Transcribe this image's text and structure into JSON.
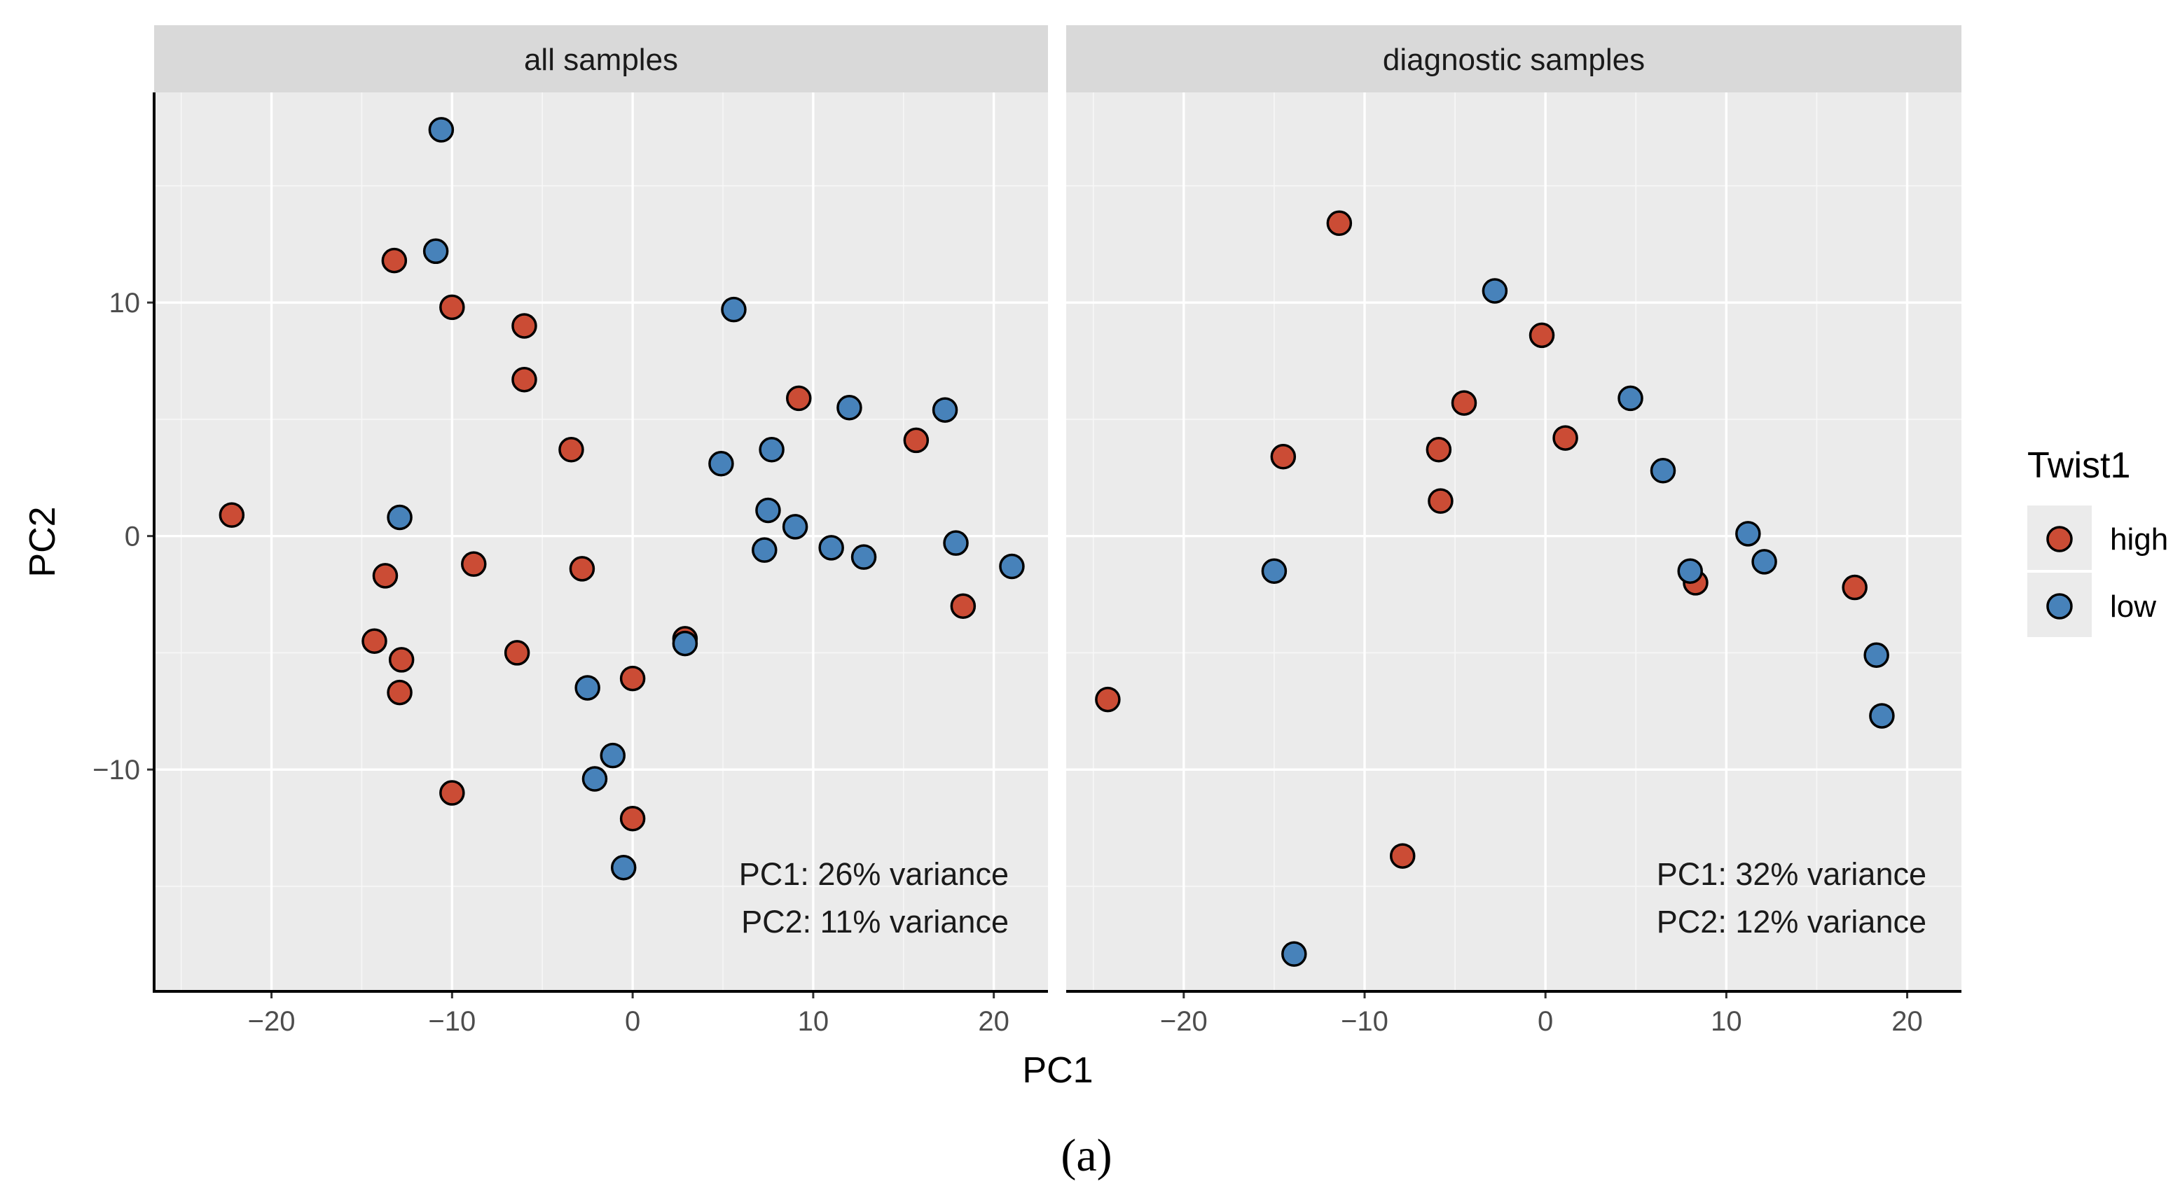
{
  "chart_data": [
    {
      "type": "scatter",
      "panel": "all samples",
      "xlabel": "PC1",
      "ylabel": "PC2",
      "xlim": [
        -26.5,
        23
      ],
      "ylim": [
        -19.5,
        19
      ],
      "xticks": [
        -20,
        -10,
        0,
        10,
        20
      ],
      "yticks": [
        -10,
        0,
        10
      ],
      "xtick_labels": [
        "−20",
        "−10",
        "0",
        "10",
        "20"
      ],
      "ytick_labels": [
        "−10",
        "0",
        "10"
      ],
      "annotations": [
        "PC1: 26% variance",
        "PC2: 11% variance"
      ],
      "series": [
        {
          "name": "high",
          "color": "#CB4C35",
          "points": [
            [
              -22.2,
              0.9
            ],
            [
              -13.2,
              11.8
            ],
            [
              -10.0,
              9.8
            ],
            [
              -6.0,
              9.0
            ],
            [
              -6.0,
              6.7
            ],
            [
              -3.4,
              3.7
            ],
            [
              9.2,
              5.9
            ],
            [
              15.7,
              4.1
            ],
            [
              -8.8,
              -1.2
            ],
            [
              -2.8,
              -1.4
            ],
            [
              -13.7,
              -1.7
            ],
            [
              -14.3,
              -4.5
            ],
            [
              -12.8,
              -5.3
            ],
            [
              -12.9,
              -6.7
            ],
            [
              -6.4,
              -5.0
            ],
            [
              2.9,
              -4.4
            ],
            [
              0.0,
              -6.1
            ],
            [
              18.3,
              -3.0
            ],
            [
              -10.0,
              -11.0
            ],
            [
              0.0,
              -12.1
            ]
          ]
        },
        {
          "name": "low",
          "color": "#4782BA",
          "points": [
            [
              -10.6,
              17.4
            ],
            [
              -10.9,
              12.2
            ],
            [
              5.6,
              9.7
            ],
            [
              12.0,
              5.5
            ],
            [
              17.3,
              5.4
            ],
            [
              4.9,
              3.1
            ],
            [
              7.7,
              3.7
            ],
            [
              -12.9,
              0.8
            ],
            [
              7.5,
              1.1
            ],
            [
              9.0,
              0.4
            ],
            [
              11.0,
              -0.5
            ],
            [
              7.3,
              -0.6
            ],
            [
              12.8,
              -0.9
            ],
            [
              17.9,
              -0.3
            ],
            [
              21.0,
              -1.3
            ],
            [
              2.9,
              -4.6
            ],
            [
              -2.5,
              -6.5
            ],
            [
              -1.1,
              -9.4
            ],
            [
              -2.1,
              -10.4
            ],
            [
              -0.5,
              -14.2
            ]
          ]
        }
      ]
    },
    {
      "type": "scatter",
      "panel": "diagnostic samples",
      "xlabel": "PC1",
      "ylabel": "PC2",
      "xlim": [
        -26.5,
        23
      ],
      "ylim": [
        -19.5,
        19
      ],
      "xticks": [
        -20,
        -10,
        0,
        10,
        20
      ],
      "yticks": [
        -10,
        0,
        10
      ],
      "xtick_labels": [
        "−20",
        "−10",
        "0",
        "10",
        "20"
      ],
      "ytick_labels": [
        "−10",
        "0",
        "10"
      ],
      "annotations": [
        "PC1: 32% variance",
        "PC2: 12% variance"
      ],
      "series": [
        {
          "name": "high",
          "color": "#CB4C35",
          "points": [
            [
              -11.4,
              13.4
            ],
            [
              -0.2,
              8.6
            ],
            [
              -4.5,
              5.7
            ],
            [
              -5.9,
              3.7
            ],
            [
              -14.5,
              3.4
            ],
            [
              1.1,
              4.2
            ],
            [
              -5.8,
              1.5
            ],
            [
              8.3,
              -2.0
            ],
            [
              17.1,
              -2.2
            ],
            [
              -24.2,
              -7.0
            ],
            [
              -7.9,
              -13.7
            ]
          ]
        },
        {
          "name": "low",
          "color": "#4782BA",
          "points": [
            [
              -2.8,
              10.5
            ],
            [
              4.7,
              5.9
            ],
            [
              6.5,
              2.8
            ],
            [
              11.2,
              0.1
            ],
            [
              8.0,
              -1.5
            ],
            [
              12.1,
              -1.1
            ],
            [
              -15.0,
              -1.5
            ],
            [
              18.3,
              -5.1
            ],
            [
              18.6,
              -7.7
            ],
            [
              -13.9,
              -17.9
            ]
          ]
        }
      ]
    }
  ],
  "axis_titles": {
    "x": "PC1",
    "y": "PC2"
  },
  "strips": [
    "all samples",
    "diagnostic samples"
  ],
  "legend": {
    "title": "Twist1",
    "items": [
      {
        "label": "high",
        "color": "#CB4C35"
      },
      {
        "label": "low",
        "color": "#4782BA"
      }
    ]
  },
  "caption": "(a)"
}
